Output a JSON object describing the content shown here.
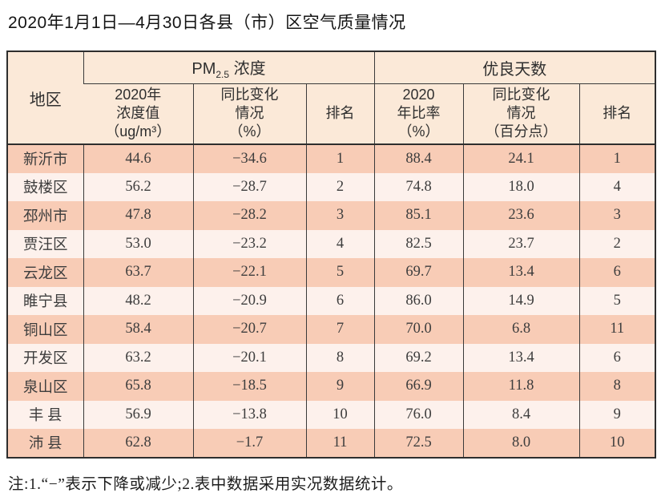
{
  "page": {
    "title": "2020年1月1日—4月30日各县（市）区空气质量情况",
    "footnote": "注:1.“−”表示下降或减少;2.表中数据采用实况数据统计。"
  },
  "table": {
    "region_header": "地区",
    "group_pm25": {
      "prefix": "PM",
      "sub": "2.5",
      "suffix": " 浓度"
    },
    "group_good_days": "优良天数",
    "subheaders": [
      "2020年\n浓度值\n（ug/m³）",
      "同比变化\n情况\n（%）",
      "排名",
      "2020\n年比率\n（%）",
      "同比变化\n情况\n（百分点）",
      "排名"
    ],
    "rows": [
      {
        "region": "新沂市",
        "pm25_value": "44.6",
        "pm25_change": "−34.6",
        "pm25_rank": "1",
        "good_rate": "88.4",
        "good_change": "24.1",
        "good_rank": "1"
      },
      {
        "region": "鼓楼区",
        "pm25_value": "56.2",
        "pm25_change": "−28.7",
        "pm25_rank": "2",
        "good_rate": "74.8",
        "good_change": "18.0",
        "good_rank": "4"
      },
      {
        "region": "邳州市",
        "pm25_value": "47.8",
        "pm25_change": "−28.2",
        "pm25_rank": "3",
        "good_rate": "85.1",
        "good_change": "23.6",
        "good_rank": "3"
      },
      {
        "region": "贾汪区",
        "pm25_value": "53.0",
        "pm25_change": "−23.2",
        "pm25_rank": "4",
        "good_rate": "82.5",
        "good_change": "23.7",
        "good_rank": "2"
      },
      {
        "region": "云龙区",
        "pm25_value": "63.7",
        "pm25_change": "−22.1",
        "pm25_rank": "5",
        "good_rate": "69.7",
        "good_change": "13.4",
        "good_rank": "6"
      },
      {
        "region": "睢宁县",
        "pm25_value": "48.2",
        "pm25_change": "−20.9",
        "pm25_rank": "6",
        "good_rate": "86.0",
        "good_change": "14.9",
        "good_rank": "5"
      },
      {
        "region": "铜山区",
        "pm25_value": "58.4",
        "pm25_change": "−20.7",
        "pm25_rank": "7",
        "good_rate": "70.0",
        "good_change": "6.8",
        "good_rank": "11"
      },
      {
        "region": "开发区",
        "pm25_value": "63.2",
        "pm25_change": "−20.1",
        "pm25_rank": "8",
        "good_rate": "69.2",
        "good_change": "13.4",
        "good_rank": "6"
      },
      {
        "region": "泉山区",
        "pm25_value": "65.8",
        "pm25_change": "−18.5",
        "pm25_rank": "9",
        "good_rate": "66.9",
        "good_change": "11.8",
        "good_rank": "8"
      },
      {
        "region": "丰 县",
        "pm25_value": "56.9",
        "pm25_change": "−13.8",
        "pm25_rank": "10",
        "good_rate": "76.0",
        "good_change": "8.4",
        "good_rank": "9"
      },
      {
        "region": "沛 县",
        "pm25_value": "62.8",
        "pm25_change": "−1.7",
        "pm25_rank": "11",
        "good_rate": "72.5",
        "good_change": "8.0",
        "good_rank": "10"
      }
    ]
  },
  "colors": {
    "stripe_dark": "#f8ccb6",
    "stripe_light": "#fdf1ec",
    "header_bg": "#fbe9d8",
    "border_outer": "#2e2e2e",
    "border_inner": "#3a3a3a"
  },
  "chart_data": {
    "type": "table",
    "title": "2020年1月1日—4月30日各县（市）区空气质量情况",
    "columns": [
      "地区",
      "PM2.5浓度 2020年浓度值（ug/m³）",
      "PM2.5浓度 同比变化情况（%）",
      "PM2.5浓度 排名",
      "优良天数 2020年比率（%）",
      "优良天数 同比变化情况（百分点）",
      "优良天数 排名"
    ],
    "rows": [
      [
        "新沂市",
        44.6,
        -34.6,
        1,
        88.4,
        24.1,
        1
      ],
      [
        "鼓楼区",
        56.2,
        -28.7,
        2,
        74.8,
        18.0,
        4
      ],
      [
        "邳州市",
        47.8,
        -28.2,
        3,
        85.1,
        23.6,
        3
      ],
      [
        "贾汪区",
        53.0,
        -23.2,
        4,
        82.5,
        23.7,
        2
      ],
      [
        "云龙区",
        63.7,
        -22.1,
        5,
        69.7,
        13.4,
        6
      ],
      [
        "睢宁县",
        48.2,
        -20.9,
        6,
        86.0,
        14.9,
        5
      ],
      [
        "铜山区",
        58.4,
        -20.7,
        7,
        70.0,
        6.8,
        11
      ],
      [
        "开发区",
        63.2,
        -20.1,
        8,
        69.2,
        13.4,
        6
      ],
      [
        "泉山区",
        65.8,
        -18.5,
        9,
        66.9,
        11.8,
        8
      ],
      [
        "丰县",
        56.9,
        -13.8,
        10,
        76.0,
        8.4,
        9
      ],
      [
        "沛县",
        62.8,
        -1.7,
        11,
        72.5,
        8.0,
        10
      ]
    ],
    "footnote": "注:1.“−”表示下降或减少;2.表中数据采用实况数据统计。"
  }
}
